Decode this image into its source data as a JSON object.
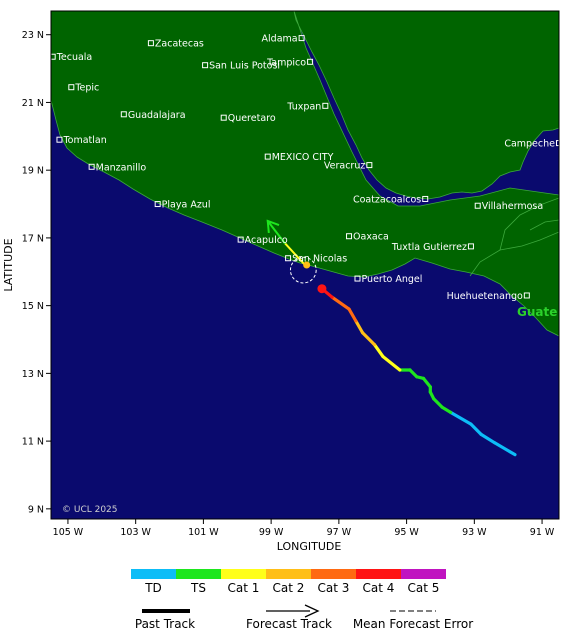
{
  "map": {
    "xlabel": "LONGITUDE",
    "ylabel": "LATITUDE",
    "lon_range": [
      -105.5,
      -90.5
    ],
    "lat_range": [
      8.7,
      23.7
    ],
    "x_ticks": [
      {
        "value": -105,
        "label": "105 W"
      },
      {
        "value": -103,
        "label": "103 W"
      },
      {
        "value": -101,
        "label": "101 W"
      },
      {
        "value": -99,
        "label": "99 W"
      },
      {
        "value": -97,
        "label": "97 W"
      },
      {
        "value": -95,
        "label": "95 W"
      },
      {
        "value": -93,
        "label": "93 W"
      },
      {
        "value": -91,
        "label": "91 W"
      }
    ],
    "y_ticks": [
      {
        "value": 23,
        "label": "23 N"
      },
      {
        "value": 21,
        "label": "21 N"
      },
      {
        "value": 19,
        "label": "19 N"
      },
      {
        "value": 17,
        "label": "17 N"
      },
      {
        "value": 15,
        "label": "15 N"
      },
      {
        "value": 13,
        "label": "13 N"
      },
      {
        "value": 11,
        "label": "11 N"
      },
      {
        "value": 9,
        "label": "9 N"
      }
    ],
    "colors": {
      "ocean": "#0a0a6e",
      "land": "#006400",
      "border": "#3ca83c",
      "town": "#ffffff"
    },
    "country_label": "Guate",
    "credit": "© UCL 2025",
    "towns": [
      {
        "name": "Aldama",
        "lon": -98.1,
        "lat": 22.9,
        "side": "left"
      },
      {
        "name": "Tecuala",
        "lon": -105.45,
        "lat": 22.35,
        "side": "right"
      },
      {
        "name": "Zacatecas",
        "lon": -102.55,
        "lat": 22.75,
        "side": "right"
      },
      {
        "name": "Tampico",
        "lon": -97.85,
        "lat": 22.2,
        "side": "left"
      },
      {
        "name": "San Luis Potosi",
        "lon": -100.95,
        "lat": 22.1,
        "side": "right"
      },
      {
        "name": "Tepic",
        "lon": -104.9,
        "lat": 21.45,
        "side": "right"
      },
      {
        "name": "Guadalajara",
        "lon": -103.35,
        "lat": 20.65,
        "side": "right"
      },
      {
        "name": "Queretaro",
        "lon": -100.4,
        "lat": 20.55,
        "side": "right"
      },
      {
        "name": "Tuxpan",
        "lon": -97.4,
        "lat": 20.9,
        "side": "left"
      },
      {
        "name": "Tomatlan",
        "lon": -105.25,
        "lat": 19.9,
        "side": "right"
      },
      {
        "name": "Campeche",
        "lon": -90.5,
        "lat": 19.8,
        "side": "left"
      },
      {
        "name": "MEXICO CITY",
        "lon": -99.1,
        "lat": 19.4,
        "side": "right"
      },
      {
        "name": "Manzanillo",
        "lon": -104.3,
        "lat": 19.1,
        "side": "right"
      },
      {
        "name": "Veracruz",
        "lon": -96.1,
        "lat": 19.15,
        "side": "left"
      },
      {
        "name": "Coatzacoalcos",
        "lon": -94.45,
        "lat": 18.15,
        "side": "left"
      },
      {
        "name": "Villahermosa",
        "lon": -92.9,
        "lat": 17.95,
        "side": "right"
      },
      {
        "name": "Playa Azul",
        "lon": -102.35,
        "lat": 18.0,
        "side": "right"
      },
      {
        "name": "Oaxaca",
        "lon": -96.7,
        "lat": 17.05,
        "side": "right"
      },
      {
        "name": "Acapulco",
        "lon": -99.9,
        "lat": 16.95,
        "side": "right"
      },
      {
        "name": "Tuxtla Gutierrez",
        "lon": -93.1,
        "lat": 16.75,
        "side": "left"
      },
      {
        "name": "San Nicolas",
        "lon": -98.5,
        "lat": 16.4,
        "side": "right"
      },
      {
        "name": "Puerto Angel",
        "lon": -96.45,
        "lat": 15.8,
        "side": "right"
      },
      {
        "name": "Huehuetenango",
        "lon": -91.45,
        "lat": 15.3,
        "side": "left"
      }
    ],
    "track": [
      {
        "lon": -91.8,
        "lat": 10.6,
        "cat": "TD"
      },
      {
        "lon": -92.4,
        "lat": 10.95,
        "cat": "TD"
      },
      {
        "lon": -92.8,
        "lat": 11.2,
        "cat": "TD"
      },
      {
        "lon": -93.1,
        "lat": 11.5,
        "cat": "TD"
      },
      {
        "lon": -93.7,
        "lat": 11.85,
        "cat": "TD"
      },
      {
        "lon": -93.95,
        "lat": 12.0,
        "cat": "TS"
      },
      {
        "lon": -94.2,
        "lat": 12.25,
        "cat": "TS"
      },
      {
        "lon": -94.3,
        "lat": 12.45,
        "cat": "TS"
      },
      {
        "lon": -94.3,
        "lat": 12.6,
        "cat": "TS"
      },
      {
        "lon": -94.5,
        "lat": 12.85,
        "cat": "TS"
      },
      {
        "lon": -94.7,
        "lat": 12.9,
        "cat": "TS"
      },
      {
        "lon": -94.9,
        "lat": 13.1,
        "cat": "TS"
      },
      {
        "lon": -95.2,
        "lat": 13.1,
        "cat": "TS"
      },
      {
        "lon": -95.7,
        "lat": 13.5,
        "cat": "Cat 1"
      },
      {
        "lon": -95.95,
        "lat": 13.85,
        "cat": "Cat 1"
      },
      {
        "lon": -96.3,
        "lat": 14.2,
        "cat": "Cat 2"
      },
      {
        "lon": -96.5,
        "lat": 14.55,
        "cat": "Cat 2"
      },
      {
        "lon": -96.7,
        "lat": 14.9,
        "cat": "Cat 3"
      },
      {
        "lon": -97.2,
        "lat": 15.25,
        "cat": "Cat 3"
      },
      {
        "lon": -97.5,
        "lat": 15.5,
        "cat": "Cat 4"
      }
    ],
    "track_end_marker": {
      "lon": -97.5,
      "lat": 15.5,
      "cat": "Cat 4"
    },
    "forecast_track": [
      {
        "lon": -98.0,
        "lat": 16.2,
        "cat": "Cat 2"
      },
      {
        "lon": -98.6,
        "lat": 16.85,
        "cat": "Cat 1"
      },
      {
        "lon": -99.1,
        "lat": 17.5,
        "cat": "TS"
      }
    ],
    "forecast_start_marker": {
      "lon": -97.95,
      "lat": 16.2,
      "cat": "Cat 2"
    },
    "error_circle": {
      "lon": -98.05,
      "lat": 16.05,
      "radius_deg": 0.38
    }
  },
  "legend": {
    "categories": [
      {
        "label": "TD",
        "color": "#0dbdf7"
      },
      {
        "label": "TS",
        "color": "#1ee61e"
      },
      {
        "label": "Cat 1",
        "color": "#ffff1a"
      },
      {
        "label": "Cat 2",
        "color": "#ffbf17"
      },
      {
        "label": "Cat 3",
        "color": "#ff6a12"
      },
      {
        "label": "Cat 4",
        "color": "#ff1414"
      },
      {
        "label": "Cat 5",
        "color": "#c014c0"
      }
    ],
    "line_keys": [
      {
        "label": "Past Track"
      },
      {
        "label": "Forecast Track"
      },
      {
        "label": "Mean Forecast Error"
      }
    ]
  }
}
